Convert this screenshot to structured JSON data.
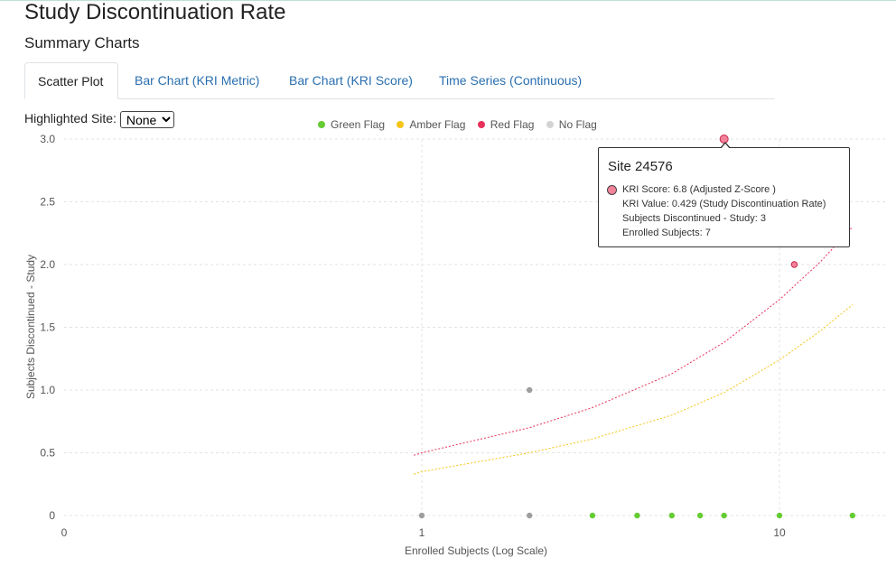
{
  "page": {
    "title": "Study Discontinuation Rate",
    "section": "Summary Charts"
  },
  "tabs": [
    {
      "label": "Scatter Plot",
      "active": true
    },
    {
      "label": "Bar Chart (KRI Metric)",
      "active": false
    },
    {
      "label": "Bar Chart (KRI Score)",
      "active": false
    },
    {
      "label": "Time Series (Continuous)",
      "active": false
    }
  ],
  "site_selector": {
    "label": "Highlighted Site:",
    "selected": "None"
  },
  "legend": [
    {
      "label": "Green Flag",
      "color": "#66cc33"
    },
    {
      "label": "Amber Flag",
      "color": "#f5c518"
    },
    {
      "label": "Red Flag",
      "color": "#e8315b"
    },
    {
      "label": "No Flag",
      "color": "#d3d3d3"
    }
  ],
  "tooltip": {
    "title": "Site 24576",
    "lines": [
      "KRI Score: 6.8 (Adjusted Z-Score )",
      "KRI Value: 0.429 (Study Discontinuation Rate)",
      "Subjects Discontinued - Study: 3",
      "Enrolled Subjects: 7"
    ]
  },
  "chart_data": {
    "type": "scatter",
    "xlabel": "Enrolled Subjects (Log Scale)",
    "ylabel": "Subjects Discontinued - Study",
    "x_scale": "log",
    "x_tick_labels": [
      "0",
      "1",
      "10"
    ],
    "y_ticks": [
      "0",
      "0.5",
      "1.0",
      "1.5",
      "2.0",
      "2.5",
      "3.0"
    ],
    "ylim": [
      0,
      3
    ],
    "grid": true,
    "series": [
      {
        "name": "Green Flag",
        "color": "#66cc33",
        "points": [
          [
            3,
            0
          ],
          [
            4,
            0
          ],
          [
            5,
            0
          ],
          [
            6,
            0
          ],
          [
            7,
            0
          ],
          [
            10,
            0
          ],
          [
            16,
            0
          ]
        ]
      },
      {
        "name": "Amber Flag",
        "color": "#f5c518",
        "points": []
      },
      {
        "name": "Red Flag",
        "color": "#e8315b",
        "points": [
          [
            7,
            3
          ],
          [
            11,
            2
          ]
        ]
      },
      {
        "name": "No Flag",
        "color": "#9e9e9e",
        "points": [
          [
            1,
            0
          ],
          [
            2,
            0
          ],
          [
            2,
            1
          ]
        ]
      }
    ],
    "thresholds": [
      {
        "flag": "Red Flag",
        "color": "#e8315b",
        "x": [
          0.95,
          1,
          2,
          3,
          5,
          7,
          10,
          13,
          16
        ],
        "y": [
          0.48,
          0.5,
          0.7,
          0.86,
          1.13,
          1.38,
          1.72,
          2.02,
          2.3
        ]
      },
      {
        "flag": "Amber Flag",
        "color": "#f5c518",
        "x": [
          0.95,
          1,
          2,
          3,
          5,
          7,
          10,
          13,
          16
        ],
        "y": [
          0.33,
          0.35,
          0.5,
          0.61,
          0.8,
          0.98,
          1.24,
          1.47,
          1.68
        ]
      }
    ]
  }
}
